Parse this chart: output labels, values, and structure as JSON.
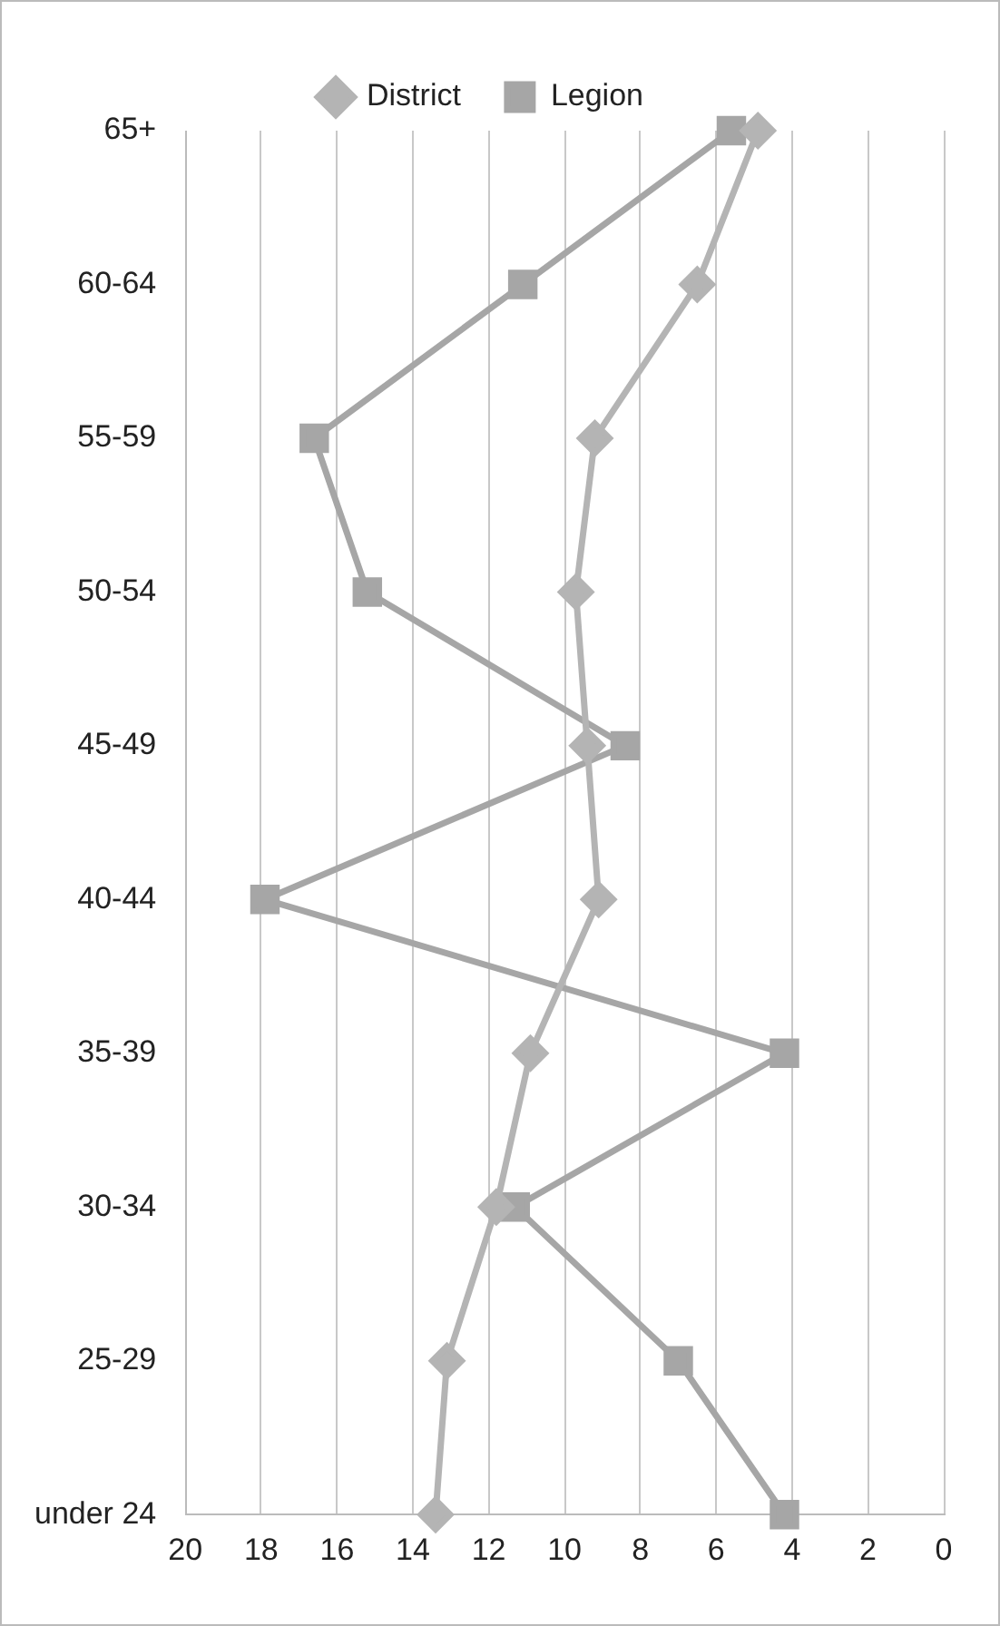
{
  "chart_data": {
    "type": "line",
    "orientation": "horizontal",
    "categories": [
      "65+",
      "60-64",
      "55-59",
      "50-54",
      "45-49",
      "40-44",
      "35-39",
      "30-34",
      "25-29",
      "under 24"
    ],
    "series": [
      {
        "name": "District",
        "color": "#b4b4b4",
        "marker": "diamond",
        "values": [
          4.9,
          6.5,
          9.2,
          9.7,
          9.4,
          9.1,
          10.9,
          11.8,
          13.1,
          13.4
        ]
      },
      {
        "name": "Legion",
        "color": "#a6a6a6",
        "marker": "square",
        "values": [
          5.6,
          11.1,
          16.6,
          15.2,
          8.4,
          17.9,
          4.2,
          11.3,
          7,
          4.2
        ]
      }
    ],
    "xlim": [
      20,
      0
    ],
    "xticks": [
      20,
      18,
      16,
      14,
      12,
      10,
      8,
      6,
      4,
      2,
      0
    ],
    "grid": "x",
    "legend": "top",
    "line_style": "solid"
  }
}
